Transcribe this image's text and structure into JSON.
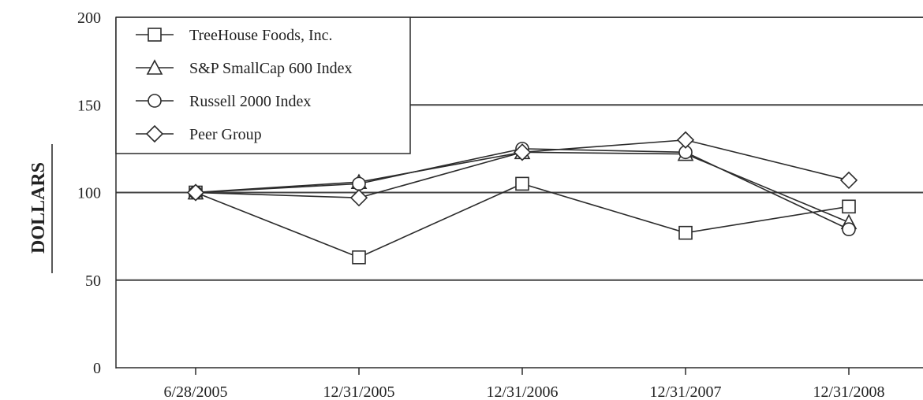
{
  "chart_data": {
    "type": "line",
    "ylabel": "DOLLARS",
    "xlabel": "",
    "title": "",
    "ylim": [
      0,
      200
    ],
    "yticks": [
      0,
      50,
      100,
      150,
      200
    ],
    "grid": "horizontal",
    "legend_position": "top-left",
    "categories": [
      "6/28/2005",
      "12/31/2005",
      "12/31/2006",
      "12/31/2007",
      "12/31/2008"
    ],
    "series": [
      {
        "name": "TreeHouse Foods, Inc.",
        "marker": "square",
        "values": [
          100,
          63,
          105,
          77,
          92
        ]
      },
      {
        "name": "S&P SmallCap 600 Index",
        "marker": "triangle",
        "values": [
          100,
          106,
          123,
          122,
          83
        ]
      },
      {
        "name": "Russell 2000 Index",
        "marker": "circle",
        "values": [
          100,
          105,
          125,
          123,
          79
        ]
      },
      {
        "name": "Peer Group",
        "marker": "diamond",
        "values": [
          100,
          97,
          123,
          130,
          107
        ]
      }
    ]
  },
  "colors": {
    "line": "#2b2b2b",
    "grid": "#444444",
    "background": "#ffffff"
  }
}
